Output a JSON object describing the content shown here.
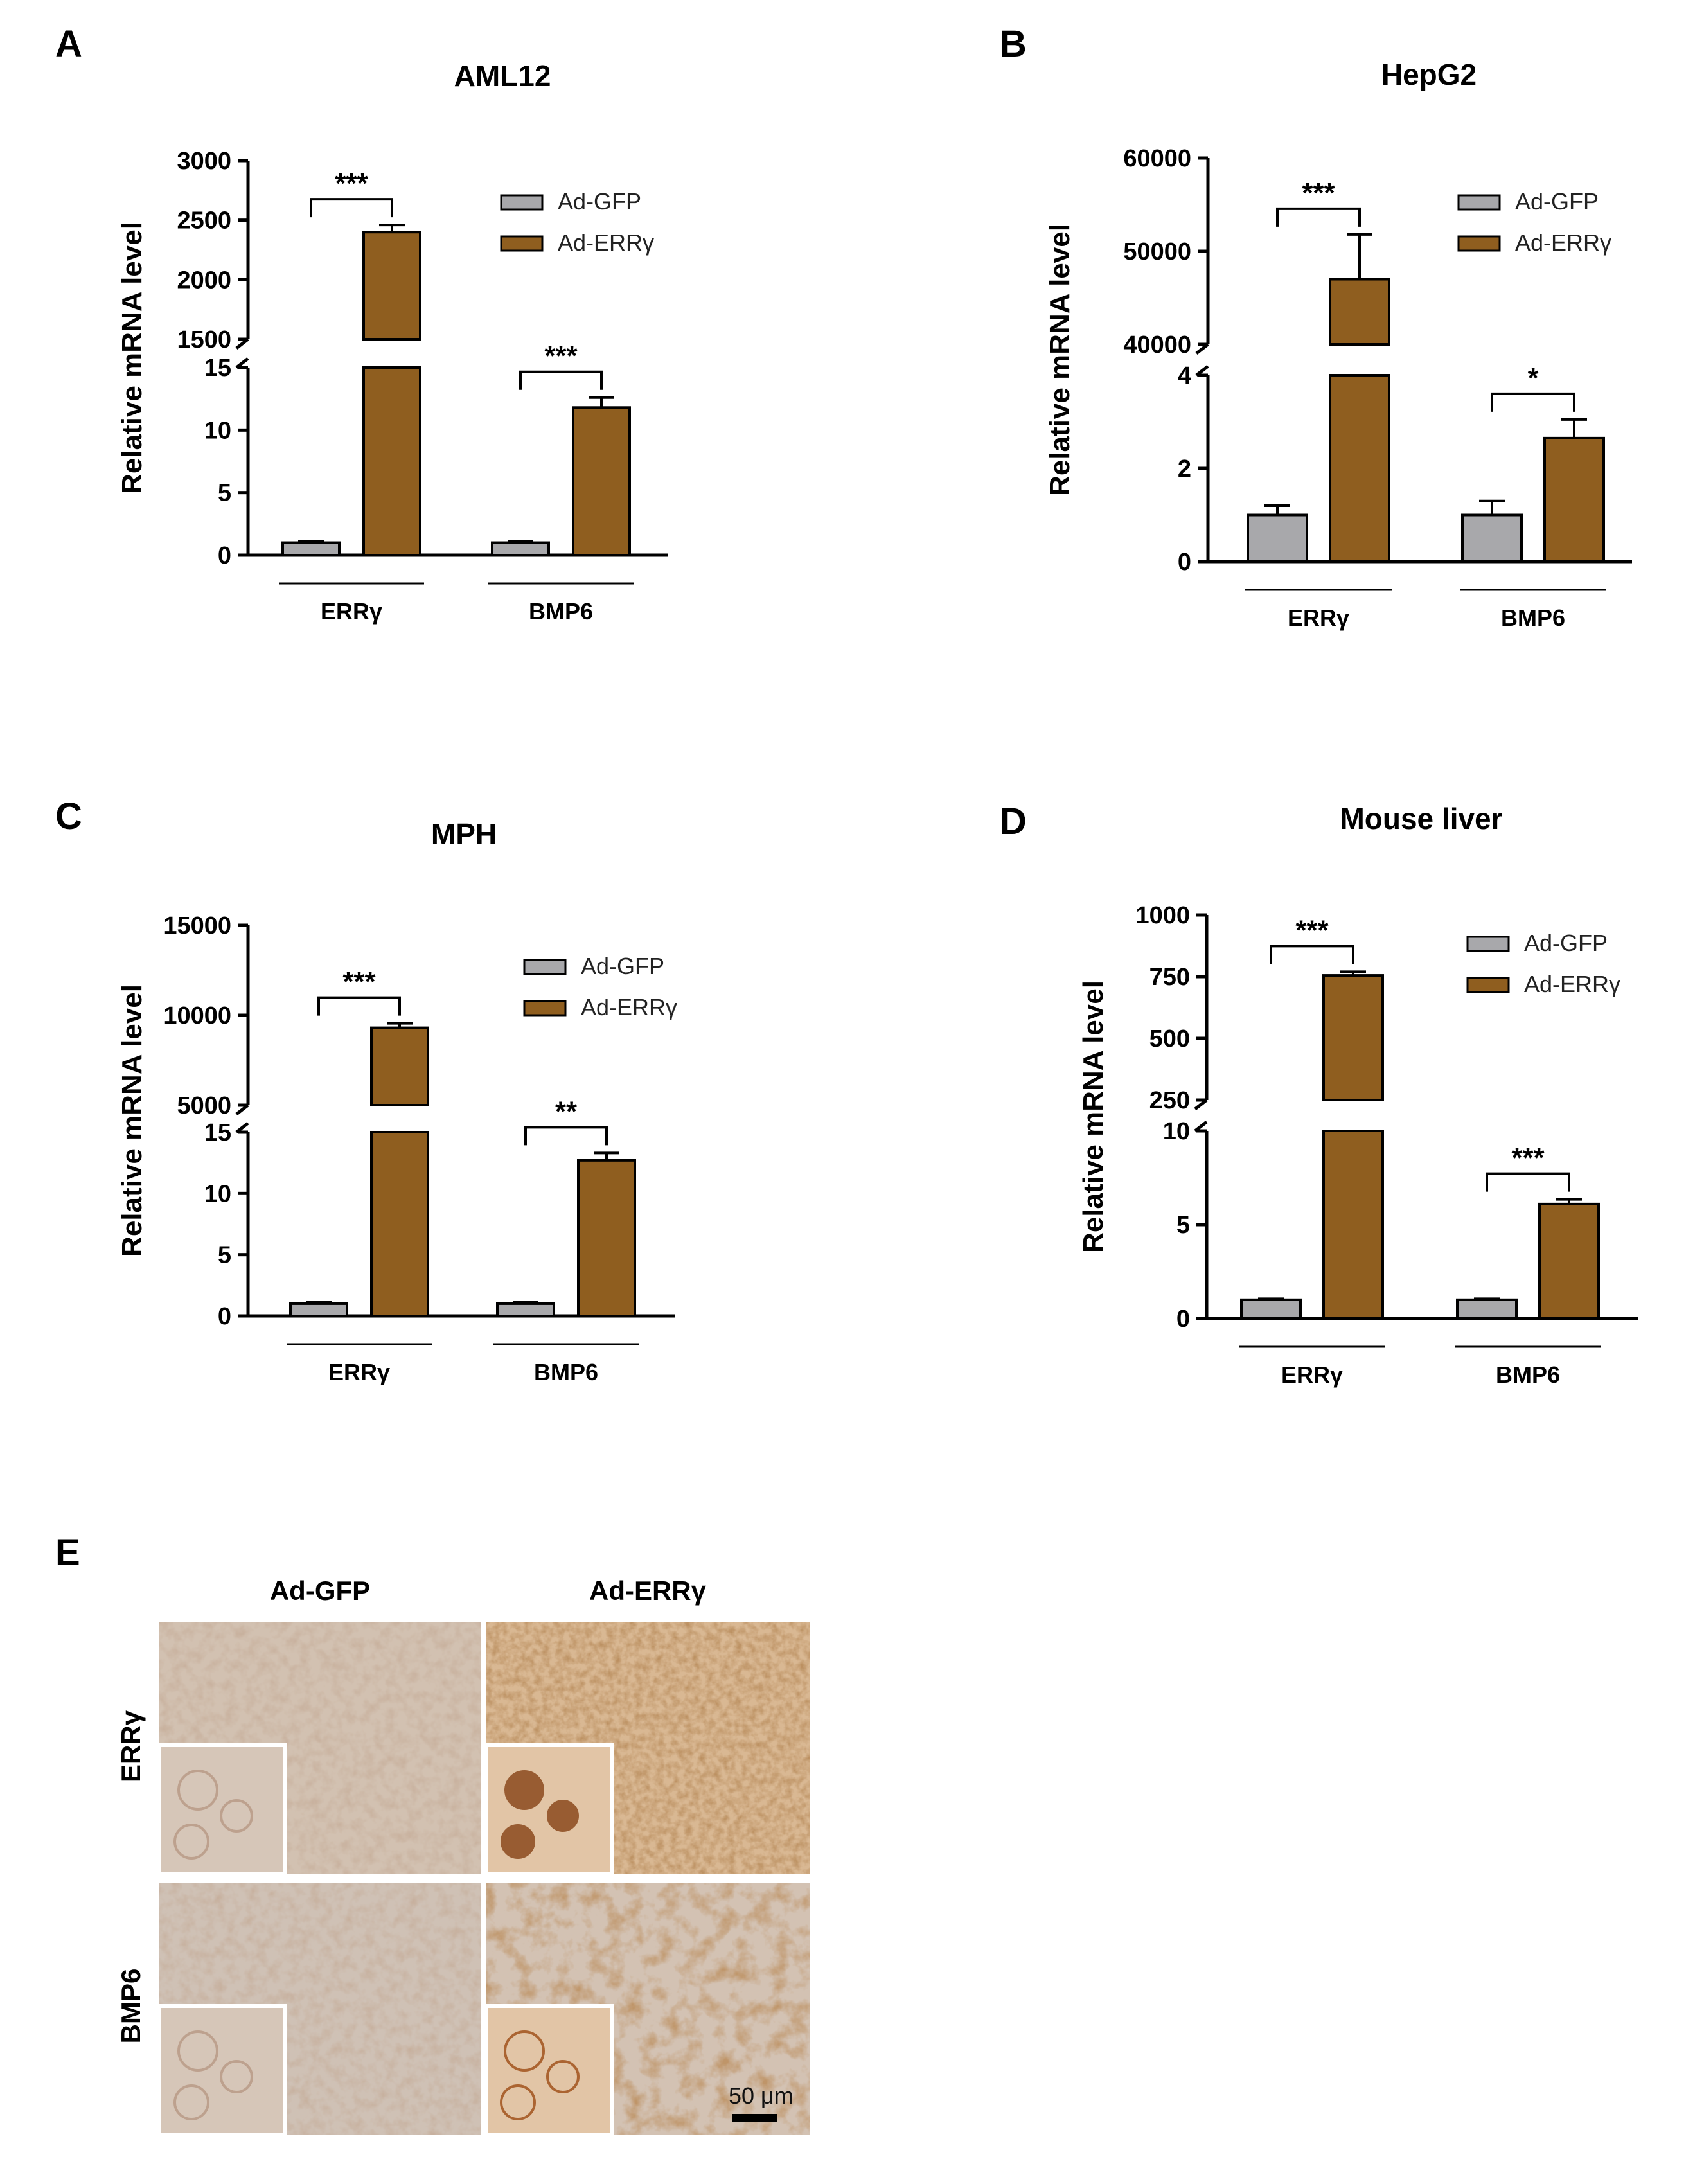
{
  "colors": {
    "gfp": "#a8a8ab",
    "err": "#8f5e1f",
    "axis": "#000000"
  },
  "chart_data": [
    {
      "panel": "A",
      "title": "AML12",
      "type": "bar",
      "ylabel": "Relative mRNA level",
      "categories": [
        "ERRγ",
        "BMP6"
      ],
      "series": [
        {
          "name": "Ad-GFP",
          "values": [
            1,
            1
          ],
          "errors": [
            0.1,
            0.1
          ]
        },
        {
          "name": "Ad-ERRγ",
          "values": [
            2400,
            11.8
          ],
          "errors": [
            60,
            0.8
          ]
        }
      ],
      "axis_break": {
        "lower": [
          0,
          15
        ],
        "upper": [
          1500,
          3000
        ]
      },
      "lower_ticks": [
        "0",
        "5",
        "10",
        "15"
      ],
      "upper_ticks": [
        "1500",
        "2000",
        "2500",
        "3000"
      ],
      "significance": [
        "***",
        "***"
      ]
    },
    {
      "panel": "B",
      "title": "HepG2",
      "type": "bar",
      "ylabel": "Relative mRNA level",
      "categories": [
        "ERRγ",
        "BMP6"
      ],
      "series": [
        {
          "name": "Ad-GFP",
          "values": [
            1,
            1
          ],
          "errors": [
            0.2,
            0.3
          ]
        },
        {
          "name": "Ad-ERRγ",
          "values": [
            47000,
            2.65
          ],
          "errors": [
            4800,
            0.4
          ]
        }
      ],
      "axis_break": {
        "lower": [
          0,
          4
        ],
        "upper": [
          40000,
          60000
        ]
      },
      "lower_ticks": [
        "0",
        "2",
        "4"
      ],
      "upper_ticks": [
        "40000",
        "50000",
        "60000"
      ],
      "significance": [
        "***",
        "*"
      ]
    },
    {
      "panel": "C",
      "title": "MPH",
      "type": "bar",
      "ylabel": "Relative mRNA level",
      "categories": [
        "ERRγ",
        "BMP6"
      ],
      "series": [
        {
          "name": "Ad-GFP",
          "values": [
            1,
            1
          ],
          "errors": [
            0.1,
            0.1
          ]
        },
        {
          "name": "Ad-ERRγ",
          "values": [
            9300,
            12.7
          ],
          "errors": [
            250,
            0.6
          ]
        }
      ],
      "axis_break": {
        "lower": [
          0,
          15
        ],
        "upper": [
          5000,
          15000
        ]
      },
      "lower_ticks": [
        "0",
        "5",
        "10",
        "15"
      ],
      "upper_ticks": [
        "5000",
        "10000",
        "15000"
      ],
      "significance": [
        "***",
        "**"
      ]
    },
    {
      "panel": "D",
      "title": "Mouse liver",
      "type": "bar",
      "ylabel": "Relative mRNA level",
      "categories": [
        "ERRγ",
        "BMP6"
      ],
      "series": [
        {
          "name": "Ad-GFP",
          "values": [
            1,
            1
          ],
          "errors": [
            0.05,
            0.05
          ]
        },
        {
          "name": "Ad-ERRγ",
          "values": [
            755,
            6.1
          ],
          "errors": [
            15,
            0.25
          ]
        }
      ],
      "axis_break": {
        "lower": [
          0,
          10
        ],
        "upper": [
          250,
          1000
        ]
      },
      "lower_ticks": [
        "0",
        "5",
        "10"
      ],
      "upper_ticks": [
        "250",
        "500",
        "750",
        "1000"
      ],
      "significance": [
        "***",
        "***"
      ]
    }
  ],
  "histology": {
    "panel": "E",
    "columns": [
      "Ad-GFP",
      "Ad-ERRγ"
    ],
    "rows": [
      "ERRγ",
      "BMP6"
    ],
    "scale_bar": "50 μm"
  }
}
